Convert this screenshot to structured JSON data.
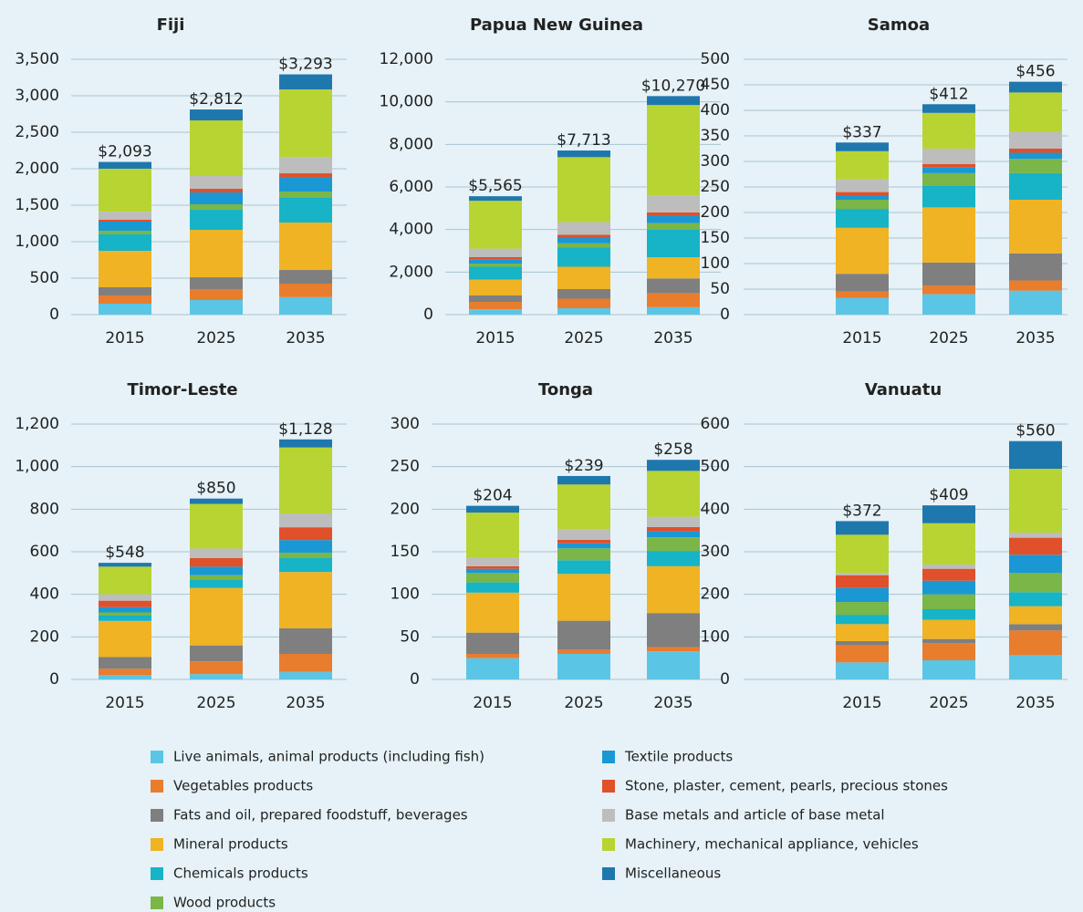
{
  "legend": [
    {
      "name": "Live animals, animal products (including fish)",
      "color": "#5bc5e6"
    },
    {
      "name": "Vegetables products",
      "color": "#e87d2e"
    },
    {
      "name": "Fats and oil, prepared foodstuff, beverages",
      "color": "#7f7f80"
    },
    {
      "name": "Mineral products",
      "color": "#f0b323"
    },
    {
      "name": "Chemicals products",
      "color": "#17b3c6"
    },
    {
      "name": "Wood products",
      "color": "#7ab648"
    },
    {
      "name": "Textile products",
      "color": "#1a98d4"
    },
    {
      "name": "Stone, plaster, cement, pearls, precious stones",
      "color": "#e0502a"
    },
    {
      "name": "Base metals and article of base metal",
      "color": "#bdbdbd"
    },
    {
      "name": "Machinery, mechanical appliance, vehicles",
      "color": "#b8d432"
    },
    {
      "name": "Miscellaneous",
      "color": "#1f78ad"
    }
  ],
  "chart_data": [
    {
      "type": "bar",
      "stacked": true,
      "title": "Fiji",
      "categories": [
        "2015",
        "2025",
        "2035"
      ],
      "series": [
        {
          "values": [
            150,
            200,
            240
          ]
        },
        {
          "values": [
            112,
            150,
            185
          ]
        },
        {
          "values": [
            113,
            162,
            187
          ]
        },
        {
          "values": [
            500,
            650,
            650
          ]
        },
        {
          "values": [
            225,
            275,
            338
          ]
        },
        {
          "values": [
            50,
            75,
            87
          ]
        },
        {
          "values": [
            125,
            163,
            200
          ]
        },
        {
          "values": [
            25,
            50,
            50
          ]
        },
        {
          "values": [
            110,
            175,
            225
          ]
        },
        {
          "values": [
            590,
            762,
            925
          ]
        },
        {
          "values": [
            93,
            150,
            206
          ]
        }
      ],
      "totals": [
        2093,
        2812,
        3293
      ],
      "total_labels": [
        "$2,093",
        "$2,812",
        "$3,293"
      ],
      "ylim": [
        0,
        3500
      ],
      "yticks": [
        0,
        500,
        {
          "value": 1000,
          "label": "1,000"
        },
        {
          "value": 1500,
          "label": "1,500"
        },
        {
          "value": 2000,
          "label": "2,000"
        },
        {
          "value": 2500,
          "label": "2,500"
        },
        {
          "value": 3000,
          "label": "3,000"
        },
        {
          "value": 3500,
          "label": "3,500"
        }
      ],
      "grid": true
    },
    {
      "type": "bar",
      "stacked": true,
      "title": "Papua New Guinea",
      "categories": [
        "2015",
        "2025",
        "2035"
      ],
      "series": [
        {
          "values": [
            250,
            300,
            350
          ]
        },
        {
          "values": [
            350,
            450,
            650
          ]
        },
        {
          "values": [
            300,
            450,
            700
          ]
        },
        {
          "values": [
            750,
            1050,
            1000
          ]
        },
        {
          "values": [
            600,
            900,
            1300
          ]
        },
        {
          "values": [
            150,
            200,
            300
          ]
        },
        {
          "values": [
            200,
            250,
            350
          ]
        },
        {
          "values": [
            100,
            150,
            150
          ]
        },
        {
          "values": [
            400,
            600,
            800
          ]
        },
        {
          "values": [
            2250,
            3050,
            4250
          ]
        },
        {
          "values": [
            215,
            313,
            420
          ]
        }
      ],
      "totals": [
        5565,
        7713,
        10270
      ],
      "total_labels": [
        "$5,565",
        "$7,713",
        "$10,270"
      ],
      "ylim": [
        0,
        12000
      ],
      "yticks": [
        0,
        {
          "value": 2000,
          "label": "2,000"
        },
        {
          "value": 4000,
          "label": "4,000"
        },
        {
          "value": 6000,
          "label": "6,000"
        },
        {
          "value": 8000,
          "label": "8,000"
        },
        {
          "value": 10000,
          "label": "10,000"
        },
        {
          "value": 12000,
          "label": "12,000"
        }
      ],
      "grid": true
    },
    {
      "type": "bar",
      "stacked": true,
      "title": "Samoa",
      "categories": [
        "2015",
        "2025",
        "2035"
      ],
      "series": [
        {
          "values": [
            33,
            40,
            47
          ]
        },
        {
          "values": [
            12,
            17,
            20
          ]
        },
        {
          "values": [
            35,
            45,
            53
          ]
        },
        {
          "values": [
            90,
            108,
            105
          ]
        },
        {
          "values": [
            37,
            43,
            52
          ]
        },
        {
          "values": [
            18,
            24,
            28
          ]
        },
        {
          "values": [
            8,
            11,
            12
          ]
        },
        {
          "values": [
            7,
            7,
            8
          ]
        },
        {
          "values": [
            25,
            30,
            33
          ]
        },
        {
          "values": [
            55,
            70,
            77
          ]
        },
        {
          "values": [
            17,
            17,
            21
          ]
        }
      ],
      "totals": [
        337,
        412,
        456
      ],
      "total_labels": [
        "$337",
        "$412",
        "$456"
      ],
      "ylim": [
        0,
        500
      ],
      "yticks": [
        0,
        50,
        100,
        150,
        200,
        250,
        300,
        350,
        400,
        450,
        500
      ],
      "grid": true
    },
    {
      "type": "bar",
      "stacked": true,
      "title": "Timor-Leste",
      "categories": [
        "2015",
        "2025",
        "2035"
      ],
      "series": [
        {
          "values": [
            20,
            25,
            35
          ]
        },
        {
          "values": [
            30,
            60,
            85
          ]
        },
        {
          "values": [
            55,
            75,
            120
          ]
        },
        {
          "values": [
            170,
            270,
            265
          ]
        },
        {
          "values": [
            25,
            40,
            65
          ]
        },
        {
          "values": [
            15,
            20,
            25
          ]
        },
        {
          "values": [
            25,
            40,
            60
          ]
        },
        {
          "values": [
            30,
            40,
            60
          ]
        },
        {
          "values": [
            30,
            45,
            65
          ]
        },
        {
          "values": [
            130,
            210,
            310
          ]
        },
        {
          "values": [
            18,
            25,
            38
          ]
        }
      ],
      "totals": [
        548,
        850,
        1128
      ],
      "total_labels": [
        "$548",
        "$850",
        "$1,128"
      ],
      "ylim": [
        0,
        1200
      ],
      "yticks": [
        0,
        200,
        400,
        600,
        800,
        {
          "value": 1000,
          "label": "1,000"
        },
        {
          "value": 1200,
          "label": "1,200"
        }
      ],
      "grid": true
    },
    {
      "type": "bar",
      "stacked": true,
      "title": "Tonga",
      "categories": [
        "2015",
        "2025",
        "2035"
      ],
      "series": [
        {
          "values": [
            25,
            30,
            33
          ]
        },
        {
          "values": [
            5,
            5,
            5
          ]
        },
        {
          "values": [
            25,
            34,
            40
          ]
        },
        {
          "values": [
            47,
            55,
            55
          ]
        },
        {
          "values": [
            12,
            16,
            18
          ]
        },
        {
          "values": [
            11,
            14,
            16
          ]
        },
        {
          "values": [
            5,
            6,
            7
          ]
        },
        {
          "values": [
            3,
            4,
            5
          ]
        },
        {
          "values": [
            10,
            12,
            12
          ]
        },
        {
          "values": [
            53,
            53,
            54
          ]
        },
        {
          "values": [
            8,
            10,
            13
          ]
        }
      ],
      "totals": [
        204,
        239,
        258
      ],
      "total_labels": [
        "$204",
        "$239",
        "$258"
      ],
      "ylim": [
        0,
        300
      ],
      "yticks": [
        0,
        50,
        100,
        150,
        200,
        250,
        300
      ],
      "grid": true
    },
    {
      "type": "bar",
      "stacked": true,
      "title": "Vanuatu",
      "categories": [
        "2015",
        "2025",
        "2035"
      ],
      "series": [
        {
          "values": [
            40,
            45,
            57
          ]
        },
        {
          "values": [
            40,
            40,
            58
          ]
        },
        {
          "values": [
            10,
            10,
            15
          ]
        },
        {
          "values": [
            40,
            45,
            42
          ]
        },
        {
          "values": [
            22,
            25,
            33
          ]
        },
        {
          "values": [
            30,
            35,
            45
          ]
        },
        {
          "values": [
            33,
            32,
            43
          ]
        },
        {
          "values": [
            30,
            28,
            40
          ]
        },
        {
          "values": [
            5,
            10,
            12
          ]
        },
        {
          "values": [
            90,
            97,
            150
          ]
        },
        {
          "values": [
            32,
            42,
            65
          ]
        }
      ],
      "totals": [
        372,
        409,
        560
      ],
      "total_labels": [
        "$372",
        "$409",
        "$560"
      ],
      "ylim": [
        0,
        600
      ],
      "yticks": [
        0,
        100,
        200,
        300,
        400,
        500,
        600
      ],
      "grid": true
    }
  ]
}
